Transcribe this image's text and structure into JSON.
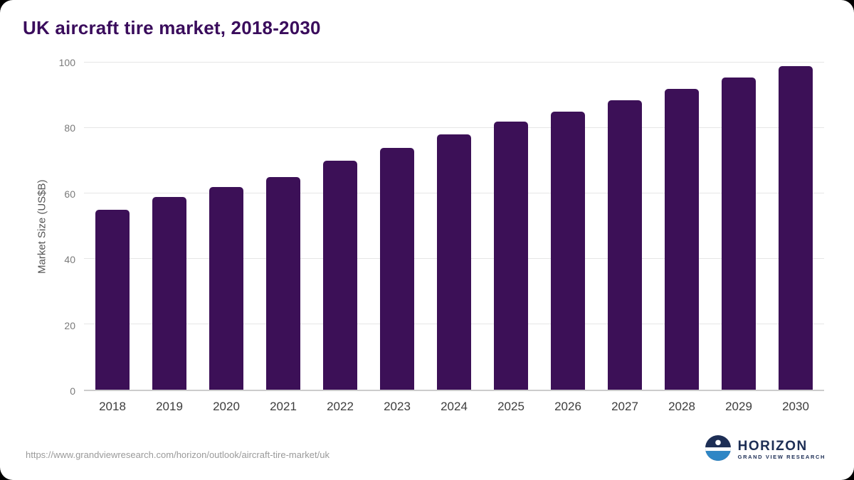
{
  "page": {
    "title": "UK aircraft tire market, 2018-2030",
    "source_url": "https://www.grandviewresearch.com/horizon/outlook/aircraft-tire-market/uk",
    "logo": {
      "name": "HORIZON",
      "subtitle": "GRAND VIEW RESEARCH"
    }
  },
  "colors": {
    "bar": "#3c1057",
    "title": "#3a0c5c",
    "grid": "#e6e6e6",
    "axis_text": "#7a7a7a",
    "x_text": "#3d3d3d",
    "logo_navy": "#1d2e55",
    "logo_water": "#2e86c5"
  },
  "chart_data": {
    "type": "bar",
    "title": "UK aircraft tire market, 2018-2030",
    "categories": [
      "2018",
      "2019",
      "2020",
      "2021",
      "2022",
      "2023",
      "2024",
      "2025",
      "2026",
      "2027",
      "2028",
      "2029",
      "2030"
    ],
    "values": [
      55,
      59,
      62,
      65,
      70,
      74,
      78,
      82,
      85,
      88.5,
      92,
      95.5,
      99
    ],
    "xlabel": "",
    "ylabel": "Market Size (US$B)",
    "ylim": [
      0,
      100
    ],
    "yticks": [
      0,
      20,
      40,
      60,
      80,
      100
    ],
    "grid": "horizontal",
    "legend": "none"
  }
}
